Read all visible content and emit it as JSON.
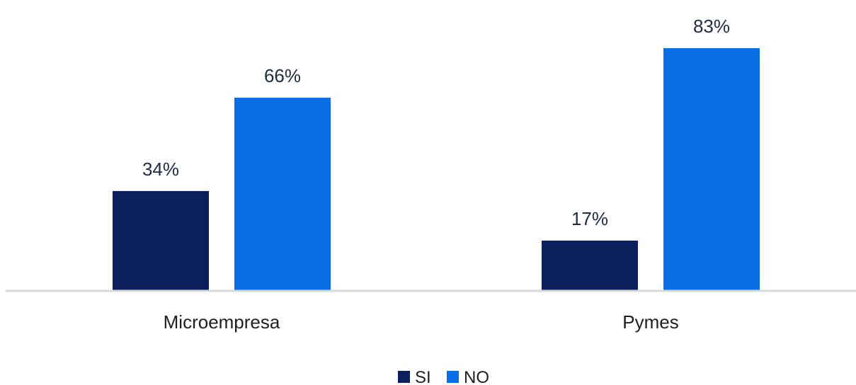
{
  "chart_data": {
    "type": "bar",
    "categories": [
      "Microempresa",
      "Pymes"
    ],
    "series": [
      {
        "name": "SI",
        "values": [
          34,
          17
        ],
        "color": "#0b1f5c"
      },
      {
        "name": "NO",
        "values": [
          66,
          83
        ],
        "color": "#0a6fe6"
      }
    ],
    "value_suffix": "%",
    "title": "",
    "xlabel": "",
    "ylabel": "",
    "ylim": [
      0,
      100
    ],
    "grid": false,
    "legend_position": "bottom-center",
    "axis_color": "#d9d9d9"
  }
}
